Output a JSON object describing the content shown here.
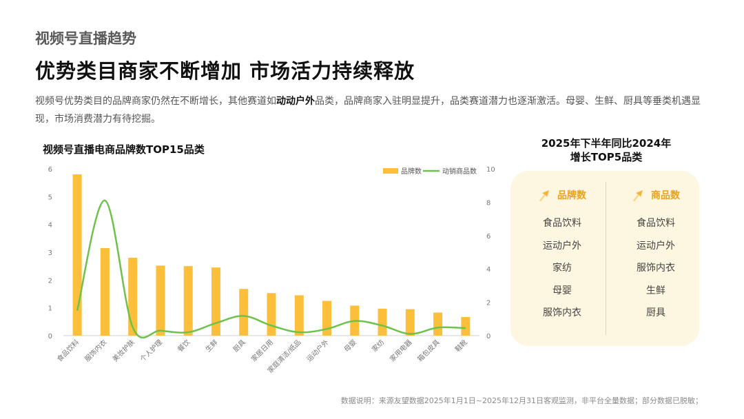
{
  "header": {
    "section_title": "视频号直播趋势",
    "headline": "优势类目商家不断增加  市场活力持续释放",
    "desc_before": "视频号优势类目的品牌商家仍然在不断增长，其他赛道如",
    "desc_bold": "动动户外",
    "desc_after": "品类，品牌商家入驻明显提升，品类赛道潜力也逐渐激活。母婴、生鲜、厨具等垂类机遇显现，市场消费潜力有待挖掘。"
  },
  "chart_data": {
    "type": "bar",
    "title": "视频号直播电商品牌数TOP15品类",
    "categories": [
      "食品饮料",
      "服饰内衣",
      "美妆护肤",
      "个人护理",
      "餐饮",
      "生鲜",
      "厨具",
      "家居日用",
      "家庭清洁/纸品",
      "运动户外",
      "母婴",
      "家纺",
      "家用电器",
      "箱包皮具",
      "鞋靴"
    ],
    "series": [
      {
        "name": "品牌数",
        "type": "bar",
        "axis": "left",
        "color": "#fbbf3c",
        "values": [
          5.8,
          3.15,
          2.8,
          2.52,
          2.5,
          2.45,
          1.68,
          1.53,
          1.45,
          1.25,
          1.08,
          0.97,
          0.95,
          0.83,
          0.67
        ]
      },
      {
        "name": "动销商品数",
        "type": "line",
        "axis": "right",
        "color": "#6cc24a",
        "values": [
          1.5,
          8.1,
          0.5,
          0.3,
          0.2,
          0.75,
          1.18,
          0.6,
          0.2,
          0.4,
          0.88,
          0.6,
          0.1,
          0.48,
          0.45
        ]
      }
    ],
    "y_left": {
      "min": 0,
      "max": 6,
      "ticks": [
        0,
        1,
        2,
        3,
        4,
        5,
        6
      ]
    },
    "y_right": {
      "min": 0,
      "max": 10,
      "ticks": [
        0,
        2,
        4,
        6,
        8,
        10
      ]
    },
    "legend_position": "top-right",
    "grid": false
  },
  "top5": {
    "title_line1": "2025年下半年同比2024年",
    "title_line2": "增长TOP5品类",
    "brand_label": "品牌数",
    "brand_items": [
      "食品饮料",
      "运动户外",
      "家纺",
      "母婴",
      "服饰内衣"
    ],
    "product_label": "商品数",
    "product_items": [
      "食品饮料",
      "运动户外",
      "服饰内衣",
      "生鲜",
      "厨具"
    ],
    "accent_color": "#e9a21a"
  },
  "footnote": "数据说明：来源友望数据2025年1月1日~2025年12月31日客观监测，非平台全量数据；部分数据已脱敏；"
}
